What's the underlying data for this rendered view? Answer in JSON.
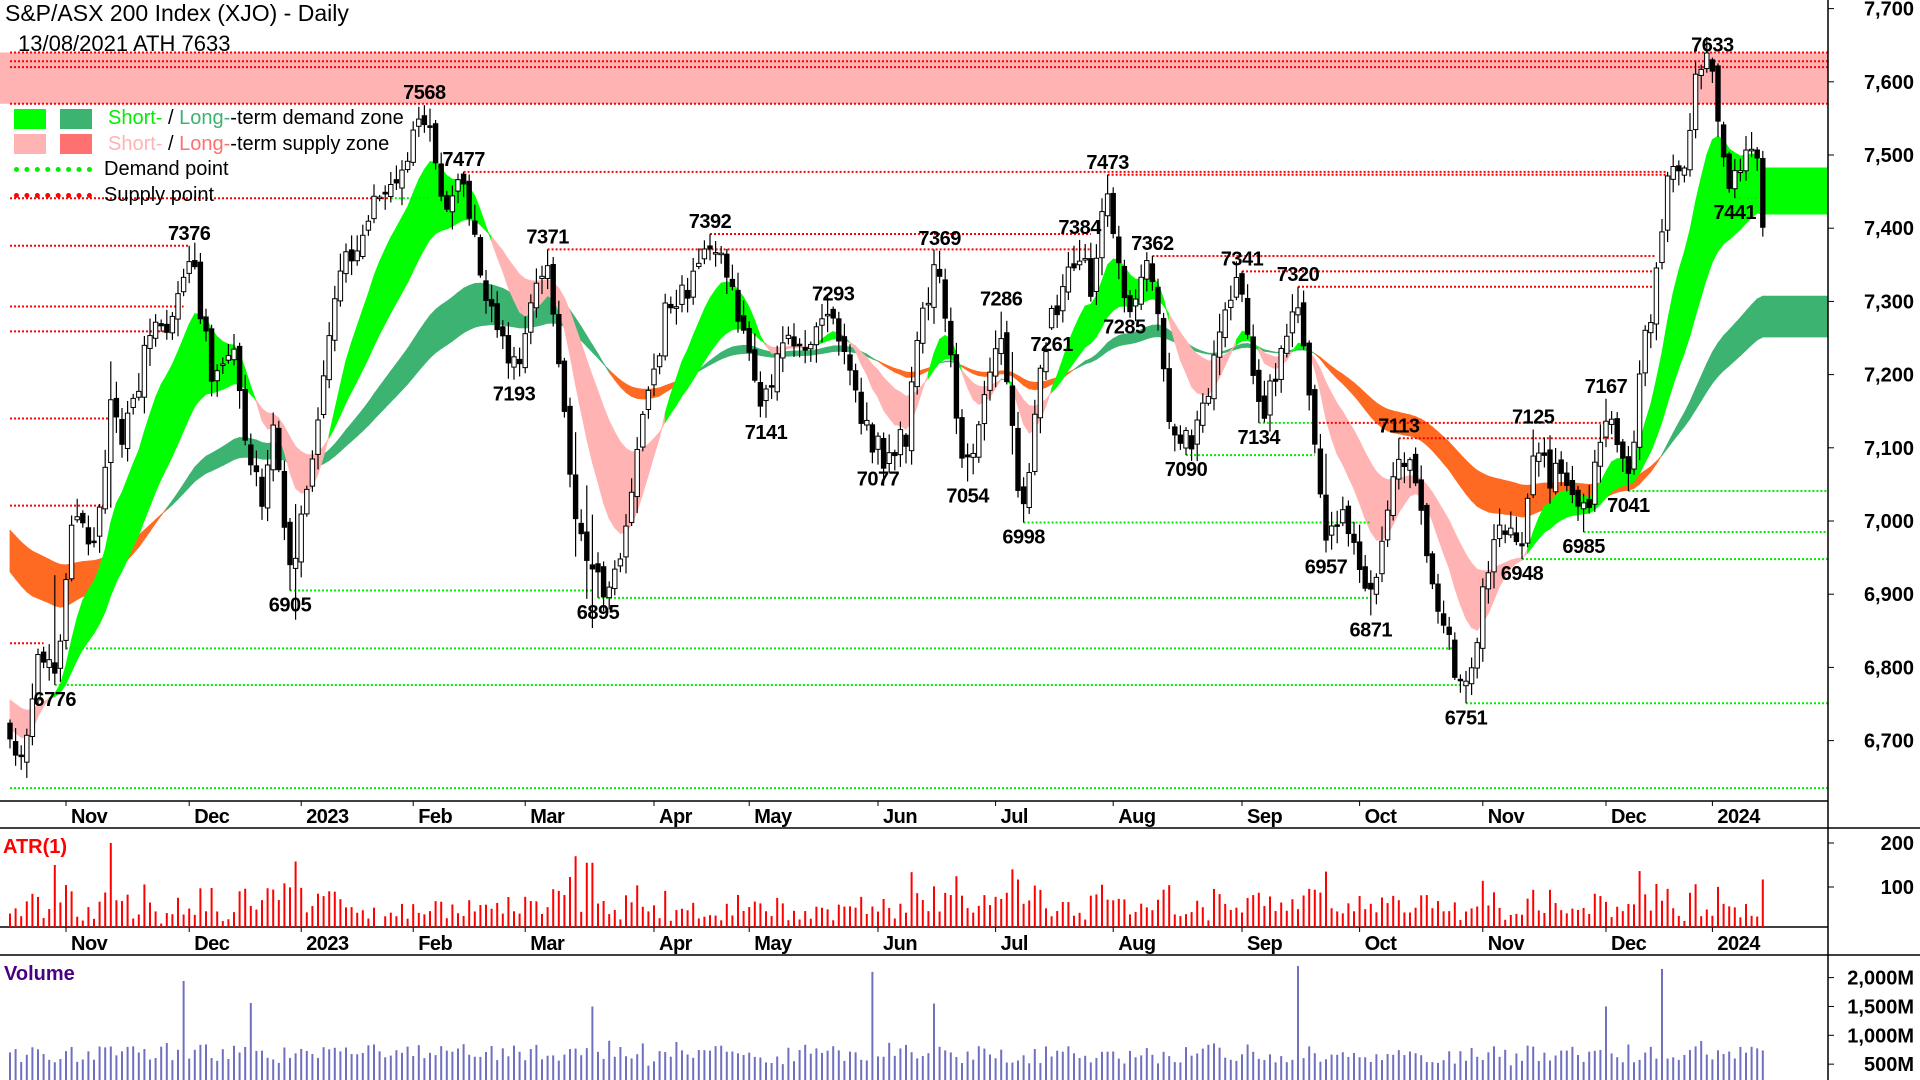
{
  "header": {
    "title": "S&P/ASX 200 Index (XJO) - Daily",
    "subtitle": "13/08/2021 ATH 7633"
  },
  "legend": {
    "rows": [
      {
        "swatches": [
          "#00ff00",
          "#3cb371"
        ],
        "short": "Short-",
        "sep": " / ",
        "long": "Long-",
        "rest": "-term demand zone",
        "short_color": "#00ee00",
        "long_color": "#3cb371"
      },
      {
        "swatches": [
          "#ffb3b3",
          "#ff7070"
        ],
        "short": "Short-",
        "sep": " / ",
        "long": "Long-",
        "rest": "-term supply zone",
        "short_color": "#ffb3b3",
        "long_color": "#ff7070"
      }
    ],
    "demand_point": "Demand point",
    "supply_point": "Supply point",
    "demand_color": "#00ee00",
    "supply_color": "#ff0000"
  },
  "chart_data": {
    "type": "candlestick",
    "title": "S&P/ASX 200 Index (XJO) - Daily",
    "subtitle": "13/08/2021 ATH 7633",
    "date_range": [
      "2022-10-18",
      "2024-01-15"
    ],
    "price_axis": {
      "ylim": [
        6620,
        7700
      ],
      "ticks": [
        6700,
        6800,
        6900,
        7000,
        7100,
        7200,
        7300,
        7400,
        7500,
        7600,
        7700
      ],
      "tick_labels": [
        "6,700",
        "6,800",
        "6,900",
        "7,000",
        "7,100",
        "7,200",
        "7,300",
        "7,400",
        "7,500",
        "7,600",
        "7,700"
      ]
    },
    "x_ticks": [
      {
        "label": "Nov",
        "date": "2022-11-01"
      },
      {
        "label": "Dec",
        "date": "2022-12-01"
      },
      {
        "label": "2023",
        "date": "2023-01-03"
      },
      {
        "label": "Feb",
        "date": "2023-02-01"
      },
      {
        "label": "Mar",
        "date": "2023-03-01"
      },
      {
        "label": "Apr",
        "date": "2023-04-03"
      },
      {
        "label": "May",
        "date": "2023-05-01"
      },
      {
        "label": "Jun",
        "date": "2023-06-01"
      },
      {
        "label": "Jul",
        "date": "2023-07-03"
      },
      {
        "label": "Aug",
        "date": "2023-08-01"
      },
      {
        "label": "Sep",
        "date": "2023-09-01"
      },
      {
        "label": "Oct",
        "date": "2023-10-02"
      },
      {
        "label": "Nov",
        "date": "2023-11-01"
      },
      {
        "label": "Dec",
        "date": "2023-12-01"
      },
      {
        "label": "2024",
        "date": "2024-01-02"
      }
    ],
    "price_path": [
      [
        "2022-10-18",
        6700,
        "C"
      ],
      [
        "2022-10-20",
        6660,
        "L"
      ],
      [
        "2022-10-25",
        6830,
        "C"
      ],
      [
        "2022-10-28",
        6776,
        "L"
      ],
      [
        "2022-11-02",
        7000,
        "C"
      ],
      [
        "2022-11-08",
        6960,
        "C"
      ],
      [
        "2022-11-11",
        7150,
        "C"
      ],
      [
        "2022-11-15",
        7110,
        "C"
      ],
      [
        "2022-11-22",
        7250,
        "C"
      ],
      [
        "2022-11-28",
        7280,
        "C"
      ],
      [
        "2022-12-01",
        7376,
        "H"
      ],
      [
        "2022-12-07",
        7200,
        "C"
      ],
      [
        "2022-12-13",
        7220,
        "C"
      ],
      [
        "2022-12-16",
        7080,
        "C"
      ],
      [
        "2022-12-20",
        7020,
        "C"
      ],
      [
        "2022-12-22",
        7140,
        "C"
      ],
      [
        "2022-12-29",
        6905,
        "L"
      ],
      [
        "2023-01-05",
        7100,
        "C"
      ],
      [
        "2023-01-12",
        7350,
        "C"
      ],
      [
        "2023-01-17",
        7380,
        "C"
      ],
      [
        "2023-01-24",
        7460,
        "C"
      ],
      [
        "2023-01-30",
        7480,
        "C"
      ],
      [
        "2023-02-03",
        7568,
        "H"
      ],
      [
        "2023-02-09",
        7420,
        "C"
      ],
      [
        "2023-02-14",
        7477,
        "H"
      ],
      [
        "2023-02-17",
        7330,
        "C"
      ],
      [
        "2023-02-22",
        7260,
        "C"
      ],
      [
        "2023-02-27",
        7193,
        "L"
      ],
      [
        "2023-03-02",
        7280,
        "C"
      ],
      [
        "2023-03-07",
        7371,
        "H"
      ],
      [
        "2023-03-10",
        7150,
        "C"
      ],
      [
        "2023-03-14",
        7000,
        "C"
      ],
      [
        "2023-03-20",
        6895,
        "L"
      ],
      [
        "2023-03-24",
        6960,
        "C"
      ],
      [
        "2023-03-29",
        7090,
        "C"
      ],
      [
        "2023-04-05",
        7280,
        "C"
      ],
      [
        "2023-04-14",
        7330,
        "C"
      ],
      [
        "2023-04-19",
        7392,
        "H"
      ],
      [
        "2023-04-27",
        7290,
        "C"
      ],
      [
        "2023-05-04",
        7141,
        "L"
      ],
      [
        "2023-05-09",
        7250,
        "C"
      ],
      [
        "2023-05-15",
        7230,
        "C"
      ],
      [
        "2023-05-22",
        7293,
        "H"
      ],
      [
        "2023-05-26",
        7170,
        "C"
      ],
      [
        "2023-06-01",
        7077,
        "L"
      ],
      [
        "2023-06-08",
        7120,
        "C"
      ],
      [
        "2023-06-13",
        7250,
        "C"
      ],
      [
        "2023-06-19",
        7369,
        "H"
      ],
      [
        "2023-06-22",
        7130,
        "C"
      ],
      [
        "2023-06-26",
        7054,
        "L"
      ],
      [
        "2023-06-30",
        7200,
        "C"
      ],
      [
        "2023-07-04",
        7286,
        "H"
      ],
      [
        "2023-07-07",
        7030,
        "C"
      ],
      [
        "2023-07-10",
        6998,
        "L"
      ],
      [
        "2023-07-13",
        7200,
        "C"
      ],
      [
        "2023-07-17",
        7261,
        "L"
      ],
      [
        "2023-07-20",
        7330,
        "C"
      ],
      [
        "2023-07-24",
        7384,
        "H"
      ],
      [
        "2023-07-26",
        7320,
        "C"
      ],
      [
        "2023-07-31",
        7473,
        "H"
      ],
      [
        "2023-08-03",
        7285,
        "L"
      ],
      [
        "2023-08-10",
        7362,
        "H"
      ],
      [
        "2023-08-15",
        7150,
        "C"
      ],
      [
        "2023-08-18",
        7090,
        "L"
      ],
      [
        "2023-08-24",
        7180,
        "C"
      ],
      [
        "2023-08-29",
        7280,
        "C"
      ],
      [
        "2023-09-01",
        7341,
        "H"
      ],
      [
        "2023-09-06",
        7134,
        "L"
      ],
      [
        "2023-09-11",
        7200,
        "C"
      ],
      [
        "2023-09-15",
        7320,
        "H"
      ],
      [
        "2023-09-19",
        7180,
        "C"
      ],
      [
        "2023-09-22",
        6957,
        "L"
      ],
      [
        "2023-09-27",
        7030,
        "C"
      ],
      [
        "2023-10-04",
        6871,
        "L"
      ],
      [
        "2023-10-11",
        7113,
        "H"
      ],
      [
        "2023-10-16",
        7050,
        "C"
      ],
      [
        "2023-10-20",
        6880,
        "C"
      ],
      [
        "2023-10-27",
        6751,
        "L"
      ],
      [
        "2023-11-01",
        6900,
        "C"
      ],
      [
        "2023-11-06",
        7000,
        "C"
      ],
      [
        "2023-11-10",
        6948,
        "L"
      ],
      [
        "2023-11-14",
        7125,
        "H"
      ],
      [
        "2023-11-17",
        7050,
        "C"
      ],
      [
        "2023-11-21",
        7080,
        "C"
      ],
      [
        "2023-11-27",
        6985,
        "L"
      ],
      [
        "2023-12-01",
        7167,
        "H"
      ],
      [
        "2023-12-07",
        7041,
        "L"
      ],
      [
        "2023-12-11",
        7200,
        "C"
      ],
      [
        "2023-12-14",
        7330,
        "C"
      ],
      [
        "2023-12-18",
        7480,
        "C"
      ],
      [
        "2023-12-21",
        7480,
        "C"
      ],
      [
        "2023-12-27",
        7600,
        "C"
      ],
      [
        "2024-01-02",
        7633,
        "H"
      ],
      [
        "2024-01-04",
        7490,
        "C"
      ],
      [
        "2024-01-08",
        7441,
        "L"
      ],
      [
        "2024-01-10",
        7500,
        "C"
      ],
      [
        "2024-01-12",
        7500,
        "C"
      ],
      [
        "2024-01-15",
        7410,
        "C"
      ]
    ],
    "pivot_labels": [
      {
        "text": "6776",
        "date": "2022-10-28",
        "pos": "below"
      },
      {
        "text": "7376",
        "date": "2022-12-01",
        "pos": "above"
      },
      {
        "text": "6905",
        "date": "2022-12-29",
        "pos": "below"
      },
      {
        "text": "7568",
        "date": "2023-02-03",
        "pos": "above"
      },
      {
        "text": "7477",
        "date": "2023-02-14",
        "pos": "above"
      },
      {
        "text": "7193",
        "date": "2023-02-27",
        "pos": "below"
      },
      {
        "text": "7371",
        "date": "2023-03-07",
        "pos": "above"
      },
      {
        "text": "6895",
        "date": "2023-03-20",
        "pos": "below"
      },
      {
        "text": "7392",
        "date": "2023-04-19",
        "pos": "above"
      },
      {
        "text": "7141",
        "date": "2023-05-04",
        "pos": "below"
      },
      {
        "text": "7293",
        "date": "2023-05-22",
        "pos": "above"
      },
      {
        "text": "7077",
        "date": "2023-06-01",
        "pos": "below"
      },
      {
        "text": "7369",
        "date": "2023-06-19",
        "pos": "above"
      },
      {
        "text": "7054",
        "date": "2023-06-26",
        "pos": "below"
      },
      {
        "text": "7286",
        "date": "2023-07-04",
        "pos": "above"
      },
      {
        "text": "6998",
        "date": "2023-07-10",
        "pos": "below"
      },
      {
        "text": "7261",
        "date": "2023-07-17",
        "pos": "below"
      },
      {
        "text": "7384",
        "date": "2023-07-24",
        "pos": "above"
      },
      {
        "text": "7473",
        "date": "2023-07-31",
        "pos": "above"
      },
      {
        "text": "7285",
        "date": "2023-08-03",
        "pos": "below"
      },
      {
        "text": "7362",
        "date": "2023-08-10",
        "pos": "above"
      },
      {
        "text": "7090",
        "date": "2023-08-18",
        "pos": "below"
      },
      {
        "text": "7341",
        "date": "2023-09-01",
        "pos": "above"
      },
      {
        "text": "7134",
        "date": "2023-09-06",
        "pos": "below"
      },
      {
        "text": "7320",
        "date": "2023-09-15",
        "pos": "above"
      },
      {
        "text": "6957",
        "date": "2023-09-22",
        "pos": "below"
      },
      {
        "text": "6871",
        "date": "2023-10-04",
        "pos": "below"
      },
      {
        "text": "7113",
        "date": "2023-10-11",
        "pos": "above"
      },
      {
        "text": "6751",
        "date": "2023-10-27",
        "pos": "below"
      },
      {
        "text": "6948",
        "date": "2023-11-10",
        "pos": "below"
      },
      {
        "text": "7125",
        "date": "2023-11-14",
        "pos": "above"
      },
      {
        "text": "6985",
        "date": "2023-11-27",
        "pos": "below"
      },
      {
        "text": "7167",
        "date": "2023-12-01",
        "pos": "above"
      },
      {
        "text": "7041",
        "date": "2023-12-07",
        "pos": "below"
      },
      {
        "text": "7633",
        "date": "2024-01-02",
        "pos": "above"
      },
      {
        "text": "7441",
        "date": "2024-01-08",
        "pos": "below"
      }
    ],
    "ath_supply_zone": {
      "low": 7570,
      "high": 7640,
      "color": "#ffb3b3"
    },
    "supply_points": [
      {
        "price": 7640,
        "from": "2022-10-18"
      },
      {
        "price": 7628,
        "from": "2022-10-18"
      },
      {
        "price": 7620,
        "from": "2022-10-18"
      },
      {
        "price": 7570,
        "from": "2022-10-18"
      },
      {
        "price": 7477,
        "from": "2023-02-14",
        "to": "2023-12-18"
      },
      {
        "price": 7473,
        "from": "2023-07-31",
        "to": "2023-12-18"
      },
      {
        "price": 7441,
        "from": "2022-10-18",
        "to": "2023-01-25"
      },
      {
        "price": 7392,
        "from": "2023-04-19",
        "to": "2023-07-26"
      },
      {
        "price": 7376,
        "from": "2022-10-18",
        "to": "2022-12-01"
      },
      {
        "price": 7371,
        "from": "2023-03-07",
        "to": "2023-07-26"
      },
      {
        "price": 7362,
        "from": "2023-08-10",
        "to": "2023-12-14"
      },
      {
        "price": 7341,
        "from": "2023-09-01",
        "to": "2023-12-14"
      },
      {
        "price": 7320,
        "from": "2023-09-15",
        "to": "2023-12-14"
      },
      {
        "price": 7293,
        "from": "2022-10-18",
        "to": "2022-11-30"
      },
      {
        "price": 7259,
        "from": "2022-10-18",
        "to": "2022-11-25"
      },
      {
        "price": 7140,
        "from": "2022-10-18",
        "to": "2022-11-11"
      },
      {
        "price": 7134,
        "from": "2023-09-20",
        "to": "2023-12-05"
      },
      {
        "price": 7113,
        "from": "2023-10-11",
        "to": "2023-12-05"
      },
      {
        "price": 7021,
        "from": "2022-10-18",
        "to": "2022-11-11"
      },
      {
        "price": 6833,
        "from": "2022-10-18",
        "to": "2022-10-26"
      }
    ],
    "demand_points": [
      {
        "price": 7441,
        "from": "2023-01-25",
        "to": "2023-02-06"
      },
      {
        "price": 7441,
        "from": "2024-01-08",
        "to": "2024-01-12"
      },
      {
        "price": 7134,
        "from": "2023-09-06",
        "to": "2023-09-20"
      },
      {
        "price": 7090,
        "from": "2023-08-18",
        "to": "2023-09-20"
      },
      {
        "price": 7041,
        "from": "2023-12-07"
      },
      {
        "price": 6998,
        "from": "2023-07-10",
        "to": "2023-10-04"
      },
      {
        "price": 6985,
        "from": "2023-11-27"
      },
      {
        "price": 6948,
        "from": "2023-11-10"
      },
      {
        "price": 6905,
        "from": "2022-12-29",
        "to": "2023-03-17"
      },
      {
        "price": 6895,
        "from": "2023-03-20",
        "to": "2023-10-04"
      },
      {
        "price": 6826,
        "from": "2022-11-01",
        "to": "2023-10-25"
      },
      {
        "price": 6776,
        "from": "2022-10-28",
        "to": "2023-10-27"
      },
      {
        "price": 6751,
        "from": "2023-10-27"
      },
      {
        "price": 6635,
        "from": "2022-10-18"
      }
    ],
    "zone_colors": {
      "short_demand": "#00ff00",
      "long_demand": "#3cb371",
      "short_supply": "#ffb3b3",
      "long_supply": "#ff6a22"
    },
    "candle_colors": {
      "up": "#ffffff",
      "down": "#000000",
      "outline": "#000000"
    },
    "atr": {
      "label": "ATR(1)",
      "color": "#ff0000",
      "ticks": [
        100,
        200
      ],
      "highlights": [
        [
          "2022-11-11",
          200
        ],
        [
          "2022-10-28",
          150
        ],
        [
          "2022-12-30",
          158
        ],
        [
          "2023-03-14",
          170
        ],
        [
          "2023-03-16",
          155
        ],
        [
          "2023-03-17",
          155
        ],
        [
          "2023-07-06",
          140
        ],
        [
          "2023-09-22",
          135
        ]
      ]
    },
    "volume": {
      "label": "Volume",
      "color": "#7070c0",
      "label_color": "#4b0082",
      "ticks": [
        500,
        1000,
        1500,
        2000
      ],
      "tick_labels": [
        "500M",
        "1,000M",
        "1,500M",
        "2,000M"
      ],
      "highlights": [
        [
          "2022-11-30",
          1940
        ],
        [
          "2022-12-16",
          1560
        ],
        [
          "2023-03-17",
          1500
        ],
        [
          "2023-05-31",
          2100
        ],
        [
          "2023-06-16",
          1550
        ],
        [
          "2023-09-15",
          2200
        ],
        [
          "2023-12-01",
          1500
        ],
        [
          "2023-12-15",
          2150
        ]
      ]
    }
  }
}
